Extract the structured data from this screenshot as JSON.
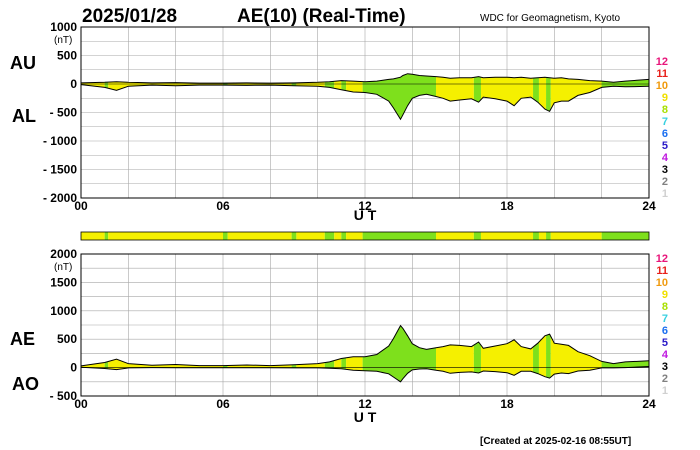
{
  "header": {
    "date": "2025/01/28",
    "title": "AE(10) (Real-Time)",
    "source": "WDC for Geomagnetism, Kyoto"
  },
  "footer": {
    "created": "[Created at 2025-02-16 08:55UT]"
  },
  "stations_scale": [
    {
      "label": "12",
      "color": "#e8157a"
    },
    {
      "label": "11",
      "color": "#e8201a"
    },
    {
      "label": "10",
      "color": "#f09a0e"
    },
    {
      "label": "9",
      "color": "#f0e000"
    },
    {
      "label": "8",
      "color": "#a8e000"
    },
    {
      "label": "7",
      "color": "#38d0e0"
    },
    {
      "label": "6",
      "color": "#1a6ef0"
    },
    {
      "label": "5",
      "color": "#2a1ac8"
    },
    {
      "label": "4",
      "color": "#c01ae0"
    },
    {
      "label": "3",
      "color": "#000000"
    },
    {
      "label": "2",
      "color": "#808080"
    },
    {
      "label": "1",
      "color": "#d0d0d0"
    }
  ],
  "station_bar": {
    "colors": {
      "yellow": "#f5f000",
      "green": "#7ee01c"
    },
    "segments": [
      {
        "from": 0.0,
        "to": 1.0,
        "level": "yellow"
      },
      {
        "from": 1.0,
        "to": 1.15,
        "level": "green"
      },
      {
        "from": 1.15,
        "to": 6.0,
        "level": "yellow"
      },
      {
        "from": 6.0,
        "to": 6.2,
        "level": "green"
      },
      {
        "from": 6.2,
        "to": 8.9,
        "level": "yellow"
      },
      {
        "from": 8.9,
        "to": 9.1,
        "level": "green"
      },
      {
        "from": 9.1,
        "to": 10.3,
        "level": "yellow"
      },
      {
        "from": 10.3,
        "to": 10.7,
        "level": "green"
      },
      {
        "from": 10.7,
        "to": 11.0,
        "level": "yellow"
      },
      {
        "from": 11.0,
        "to": 11.2,
        "level": "green"
      },
      {
        "from": 11.2,
        "to": 11.9,
        "level": "yellow"
      },
      {
        "from": 11.9,
        "to": 15.0,
        "level": "green"
      },
      {
        "from": 15.0,
        "to": 16.6,
        "level": "yellow"
      },
      {
        "from": 16.6,
        "to": 16.9,
        "level": "green"
      },
      {
        "from": 16.9,
        "to": 19.1,
        "level": "yellow"
      },
      {
        "from": 19.1,
        "to": 19.35,
        "level": "green"
      },
      {
        "from": 19.35,
        "to": 19.65,
        "level": "yellow"
      },
      {
        "from": 19.65,
        "to": 19.85,
        "level": "green"
      },
      {
        "from": 19.85,
        "to": 22.0,
        "level": "yellow"
      },
      {
        "from": 22.0,
        "to": 24.0,
        "level": "green"
      }
    ]
  },
  "chart_data": [
    {
      "type": "area",
      "name": "AU/AL",
      "upper_label": "AU",
      "lower_label": "AL",
      "unit": "(nT)",
      "xlabel": "U T",
      "xlim": [
        0,
        24
      ],
      "xticks": [
        "00",
        "06",
        "12",
        "18",
        "24"
      ],
      "ylim": [
        -2000,
        1000
      ],
      "yticks": [
        "1000",
        "500",
        "0",
        "- 500",
        "- 1000",
        "- 1500",
        "- 2000"
      ],
      "grid": true,
      "x": [
        0,
        1,
        1.5,
        2,
        3,
        4,
        5,
        6,
        7,
        8,
        9,
        10,
        10.5,
        11,
        11.5,
        12,
        12.5,
        13,
        13.2,
        13.5,
        13.6,
        13.8,
        14,
        14.3,
        14.6,
        15,
        15.3,
        15.6,
        16,
        16.5,
        16.8,
        17,
        17.5,
        18,
        18.3,
        18.6,
        19,
        19.3,
        19.6,
        19.8,
        20,
        20.3,
        20.6,
        21,
        21.5,
        22,
        22.5,
        23,
        24
      ],
      "AU": [
        20,
        30,
        40,
        30,
        20,
        25,
        15,
        15,
        20,
        15,
        20,
        30,
        40,
        60,
        50,
        40,
        50,
        80,
        90,
        120,
        150,
        180,
        170,
        150,
        140,
        130,
        120,
        100,
        110,
        110,
        130,
        110,
        120,
        120,
        110,
        120,
        100,
        110,
        120,
        110,
        100,
        110,
        90,
        80,
        60,
        50,
        30,
        50,
        80
      ],
      "AL": [
        -10,
        -60,
        -110,
        -40,
        -20,
        -30,
        -20,
        -20,
        -25,
        -20,
        -30,
        -40,
        -60,
        -100,
        -140,
        -150,
        -180,
        -300,
        -420,
        -620,
        -540,
        -380,
        -250,
        -200,
        -180,
        -220,
        -250,
        -300,
        -280,
        -260,
        -320,
        -230,
        -260,
        -300,
        -380,
        -250,
        -230,
        -320,
        -440,
        -480,
        -330,
        -300,
        -300,
        -200,
        -150,
        -60,
        -40,
        -50,
        -40
      ]
    },
    {
      "type": "area",
      "name": "AE/AO",
      "upper_label": "AE",
      "lower_label": "AO",
      "unit": "(nT)",
      "xlabel": "U T",
      "xlim": [
        0,
        24
      ],
      "xticks": [
        "00",
        "06",
        "12",
        "18",
        "24"
      ],
      "ylim": [
        -500,
        2000
      ],
      "yticks": [
        "2000",
        "1500",
        "1000",
        "500",
        "0",
        "- 500"
      ],
      "grid": true,
      "x": [
        0,
        1,
        1.5,
        2,
        3,
        4,
        5,
        6,
        7,
        8,
        9,
        10,
        10.5,
        11,
        11.5,
        12,
        12.5,
        13,
        13.2,
        13.5,
        13.6,
        13.8,
        14,
        14.3,
        14.6,
        15,
        15.3,
        15.6,
        16,
        16.5,
        16.8,
        17,
        17.5,
        18,
        18.3,
        18.6,
        19,
        19.3,
        19.6,
        19.8,
        20,
        20.3,
        20.6,
        21,
        21.5,
        22,
        22.5,
        23,
        24
      ],
      "AE": [
        30,
        90,
        150,
        70,
        40,
        55,
        35,
        35,
        45,
        35,
        50,
        70,
        100,
        160,
        190,
        190,
        230,
        380,
        510,
        740,
        690,
        560,
        420,
        350,
        320,
        350,
        370,
        400,
        390,
        370,
        450,
        340,
        380,
        420,
        490,
        370,
        330,
        430,
        560,
        590,
        430,
        410,
        390,
        280,
        210,
        110,
        70,
        100,
        120
      ],
      "AO": [
        5,
        -15,
        -35,
        -5,
        0,
        -2,
        -2,
        -2,
        -2,
        -2,
        -5,
        -5,
        -10,
        -20,
        -45,
        -55,
        -65,
        -110,
        -165,
        -250,
        -195,
        -100,
        -40,
        -25,
        -20,
        -45,
        -65,
        -100,
        -85,
        -75,
        -95,
        -60,
        -70,
        -90,
        -135,
        -65,
        -65,
        -105,
        -160,
        -185,
        -115,
        -95,
        -105,
        -60,
        -45,
        -5,
        -5,
        0,
        20
      ]
    }
  ]
}
